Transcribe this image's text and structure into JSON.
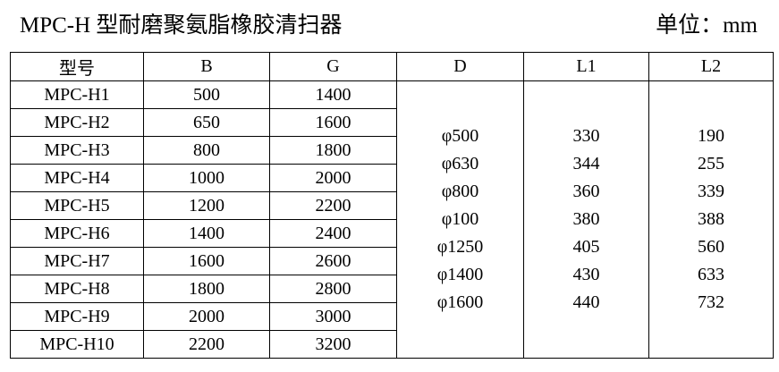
{
  "title": "MPC-H 型耐磨聚氨脂橡胶清扫器",
  "unit": "单位：mm",
  "headers": [
    "型号",
    "B",
    "G",
    "D",
    "L1",
    "L2"
  ],
  "rows": [
    [
      "MPC-H1",
      "500",
      "1400"
    ],
    [
      "MPC-H2",
      "650",
      "1600"
    ],
    [
      "MPC-H3",
      "800",
      "1800"
    ],
    [
      "MPC-H4",
      "1000",
      "2000"
    ],
    [
      "MPC-H5",
      "1200",
      "2200"
    ],
    [
      "MPC-H6",
      "1400",
      "2400"
    ],
    [
      "MPC-H7",
      "1600",
      "2600"
    ],
    [
      "MPC-H8",
      "1800",
      "2800"
    ],
    [
      "MPC-H9",
      "2000",
      "3000"
    ],
    [
      "MPC-H10",
      "2200",
      "3200"
    ]
  ],
  "D": [
    "φ500",
    "φ630",
    "φ800",
    "φ100",
    "φ1250",
    "φ1400",
    "φ1600"
  ],
  "L1": [
    "330",
    "344",
    "360",
    "380",
    "405",
    "430",
    "440"
  ],
  "L2": [
    "190",
    "255",
    "339",
    "388",
    "560",
    "633",
    "732"
  ]
}
